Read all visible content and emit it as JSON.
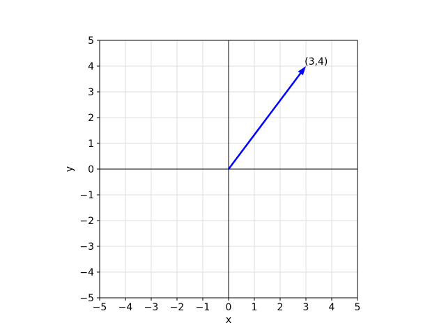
{
  "chart_data": {
    "type": "line",
    "subtype": "vector-quiver",
    "title": "",
    "xlabel": "x",
    "ylabel": "y",
    "xlim": [
      -5,
      5
    ],
    "ylim": [
      -5,
      5
    ],
    "xticks": [
      -5,
      -4,
      -3,
      -2,
      -1,
      0,
      1,
      2,
      3,
      4,
      5
    ],
    "yticks": [
      -5,
      -4,
      -3,
      -2,
      -1,
      0,
      1,
      2,
      3,
      4,
      5
    ],
    "grid": true,
    "legend": false,
    "vectors": [
      {
        "x0": 0,
        "y0": 0,
        "x1": 3,
        "y1": 4,
        "color": "#0000ff"
      }
    ],
    "annotations": [
      {
        "text": "(3,4)",
        "x": 2.95,
        "y": 4.05
      }
    ],
    "axis_lines": {
      "hline_y": 0,
      "vline_x": 0
    },
    "colors": {
      "vector": "#0000ff",
      "grid": "#dddddd",
      "spine": "#000000",
      "axis_line": "#000000",
      "background": "#ffffff",
      "text": "#000000"
    }
  }
}
